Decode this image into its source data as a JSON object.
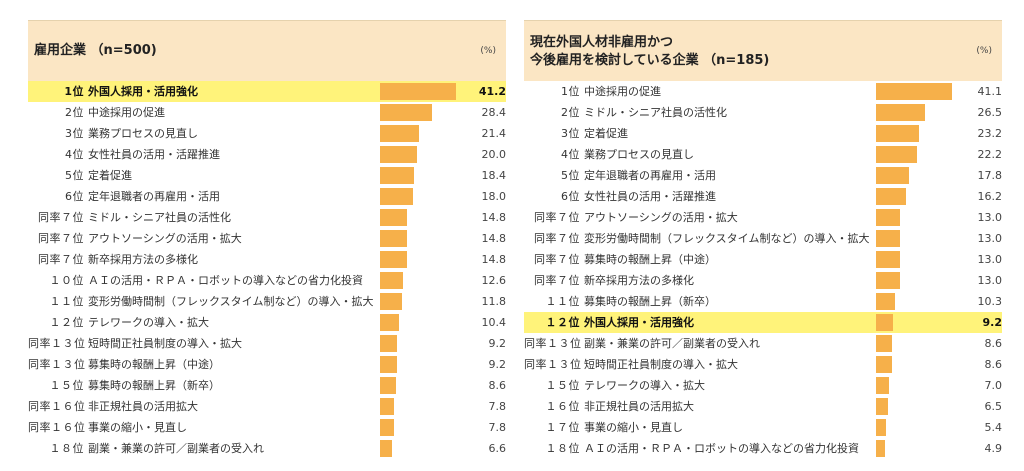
{
  "chart_data": [
    {
      "type": "bar",
      "title": "雇用企業 （n=500)",
      "unit": "(%)",
      "highlight_color": "#fff37a",
      "bar_color": "#f6b04a",
      "highlight_index": 0,
      "xlim": [
        0,
        41.2
      ],
      "rows": [
        {
          "rank": "1位",
          "label": "外国人採用・活用強化",
          "value": 41.2,
          "value_text": "41.2"
        },
        {
          "rank": "2位",
          "label": "中途採用の促進",
          "value": 28.4,
          "value_text": "28.4"
        },
        {
          "rank": "3位",
          "label": "業務プロセスの見直し",
          "value": 21.4,
          "value_text": "21.4"
        },
        {
          "rank": "4位",
          "label": "女性社員の活用・活躍推進",
          "value": 20.0,
          "value_text": "20.0"
        },
        {
          "rank": "5位",
          "label": "定着促進",
          "value": 18.4,
          "value_text": "18.4"
        },
        {
          "rank": "6位",
          "label": "定年退職者の再雇用・活用",
          "value": 18.0,
          "value_text": "18.0"
        },
        {
          "rank": "同率７位",
          "label": "ミドル・シニア社員の活性化",
          "value": 14.8,
          "value_text": "14.8"
        },
        {
          "rank": "同率７位",
          "label": "アウトソーシングの活用・拡大",
          "value": 14.8,
          "value_text": "14.8"
        },
        {
          "rank": "同率７位",
          "label": "新卒採用方法の多様化",
          "value": 14.8,
          "value_text": "14.8"
        },
        {
          "rank": "１０位",
          "label": "ＡＩの活用・ＲＰＡ・ロボットの導入などの省力化投資",
          "value": 12.6,
          "value_text": "12.6"
        },
        {
          "rank": "１１位",
          "label": "変形労働時間制（フレックスタイム制など）の導入・拡大",
          "value": 11.8,
          "value_text": "11.8"
        },
        {
          "rank": "１２位",
          "label": "テレワークの導入・拡大",
          "value": 10.4,
          "value_text": "10.4"
        },
        {
          "rank": "同率１３位",
          "label": "短時間正社員制度の導入・拡大",
          "value": 9.2,
          "value_text": "9.2"
        },
        {
          "rank": "同率１３位",
          "label": "募集時の報酬上昇（中途）",
          "value": 9.2,
          "value_text": "9.2"
        },
        {
          "rank": "１５位",
          "label": "募集時の報酬上昇（新卒）",
          "value": 8.6,
          "value_text": "8.6"
        },
        {
          "rank": "同率１６位",
          "label": "非正規社員の活用拡大",
          "value": 7.8,
          "value_text": "7.8"
        },
        {
          "rank": "同率１６位",
          "label": "事業の縮小・見直し",
          "value": 7.8,
          "value_text": "7.8"
        },
        {
          "rank": "１８位",
          "label": "副業・兼業の許可／副業者の受入れ",
          "value": 6.6,
          "value_text": "6.6"
        }
      ]
    },
    {
      "type": "bar",
      "title": "現在外国人材非雇用かつ\n今後雇用を検討している企業 （n=185)",
      "unit": "(%)",
      "highlight_color": "#fff37a",
      "bar_color": "#f6b04a",
      "highlight_index": 11,
      "xlim": [
        0,
        41.1
      ],
      "rows": [
        {
          "rank": "1位",
          "label": "中途採用の促進",
          "value": 41.1,
          "value_text": "41.1"
        },
        {
          "rank": "2位",
          "label": "ミドル・シニア社員の活性化",
          "value": 26.5,
          "value_text": "26.5"
        },
        {
          "rank": "3位",
          "label": "定着促進",
          "value": 23.2,
          "value_text": "23.2"
        },
        {
          "rank": "4位",
          "label": "業務プロセスの見直し",
          "value": 22.2,
          "value_text": "22.2"
        },
        {
          "rank": "5位",
          "label": "定年退職者の再雇用・活用",
          "value": 17.8,
          "value_text": "17.8"
        },
        {
          "rank": "6位",
          "label": "女性社員の活用・活躍推進",
          "value": 16.2,
          "value_text": "16.2"
        },
        {
          "rank": "同率７位",
          "label": "アウトソーシングの活用・拡大",
          "value": 13.0,
          "value_text": "13.0"
        },
        {
          "rank": "同率７位",
          "label": "変形労働時間制（フレックスタイム制など）の導入・拡大",
          "value": 13.0,
          "value_text": "13.0"
        },
        {
          "rank": "同率７位",
          "label": "募集時の報酬上昇（中途）",
          "value": 13.0,
          "value_text": "13.0"
        },
        {
          "rank": "同率７位",
          "label": "新卒採用方法の多様化",
          "value": 13.0,
          "value_text": "13.0"
        },
        {
          "rank": "１１位",
          "label": "募集時の報酬上昇（新卒）",
          "value": 10.3,
          "value_text": "10.3"
        },
        {
          "rank": "１２位",
          "label": "外国人採用・活用強化",
          "value": 9.2,
          "value_text": "9.2"
        },
        {
          "rank": "同率１３位",
          "label": "副業・兼業の許可／副業者の受入れ",
          "value": 8.6,
          "value_text": "8.6"
        },
        {
          "rank": "同率１３位",
          "label": "短時間正社員制度の導入・拡大",
          "value": 8.6,
          "value_text": "8.6"
        },
        {
          "rank": "１５位",
          "label": "テレワークの導入・拡大",
          "value": 7.0,
          "value_text": "7.0"
        },
        {
          "rank": "１６位",
          "label": "非正規社員の活用拡大",
          "value": 6.5,
          "value_text": "6.5"
        },
        {
          "rank": "１７位",
          "label": "事業の縮小・見直し",
          "value": 5.4,
          "value_text": "5.4"
        },
        {
          "rank": "１８位",
          "label": "ＡＩの活用・ＲＰＡ・ロボットの導入などの省力化投資",
          "value": 4.9,
          "value_text": "4.9"
        }
      ]
    }
  ]
}
